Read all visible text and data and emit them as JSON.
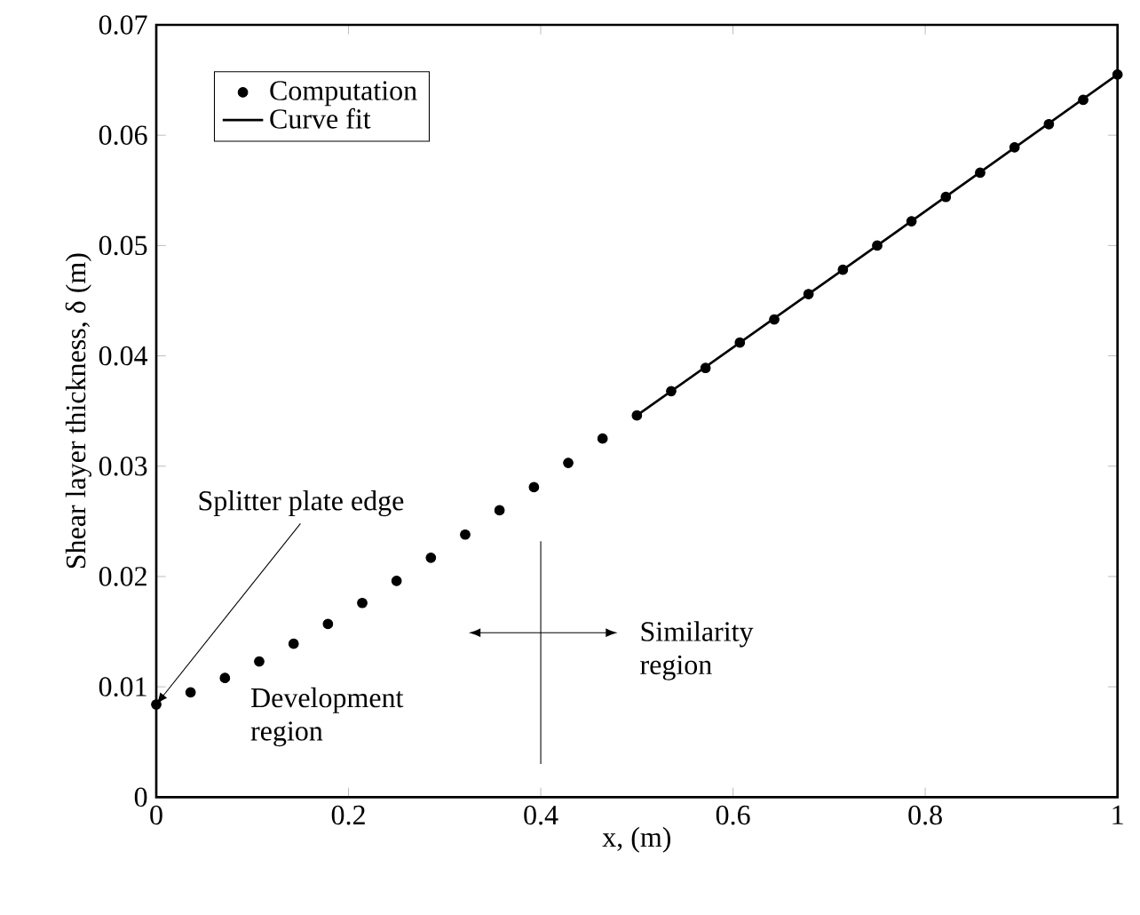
{
  "chart_data": {
    "type": "scatter",
    "xlabel": "x, (m)",
    "ylabel": "Shear layer thickness, δ (m)",
    "xlim": [
      0,
      1
    ],
    "ylim": [
      0,
      0.07
    ],
    "xticks": [
      0,
      0.2,
      0.4,
      0.6,
      0.8,
      1
    ],
    "yticks": [
      0,
      0.01,
      0.02,
      0.03,
      0.04,
      0.05,
      0.06,
      0.07
    ],
    "grid": false,
    "legend": "top left",
    "series": [
      {
        "name": "Computation",
        "marker": "circle",
        "color": "#000000",
        "x": [
          0,
          0.0357,
          0.0714,
          0.1071,
          0.1429,
          0.1786,
          0.2143,
          0.25,
          0.2857,
          0.3214,
          0.3571,
          0.3929,
          0.4286,
          0.4643,
          0.5,
          0.5357,
          0.5714,
          0.6071,
          0.6429,
          0.6786,
          0.7143,
          0.75,
          0.7857,
          0.8214,
          0.8571,
          0.8929,
          0.9286,
          0.9643,
          1
        ],
        "values": [
          0.0084,
          0.0095,
          0.0108,
          0.0123,
          0.0139,
          0.0157,
          0.0176,
          0.0196,
          0.0217,
          0.0238,
          0.026,
          0.0281,
          0.0303,
          0.0325,
          0.0346,
          0.0368,
          0.0389,
          0.0412,
          0.0433,
          0.0456,
          0.0478,
          0.05,
          0.0522,
          0.0544,
          0.0566,
          0.0589,
          0.061,
          0.0632,
          0.0655
        ]
      },
      {
        "name": "Curve fit",
        "type": "line",
        "marker": "none",
        "line_style": "solid",
        "color": "#000000",
        "x": [
          0.5,
          0.75,
          1
        ],
        "values": [
          0.0346,
          0.05,
          0.0655
        ]
      }
    ],
    "annotations": [
      {
        "text": "Splitter plate edge",
        "x": 0,
        "y": 0.0084
      },
      "Development region",
      "Similarity region"
    ]
  }
}
